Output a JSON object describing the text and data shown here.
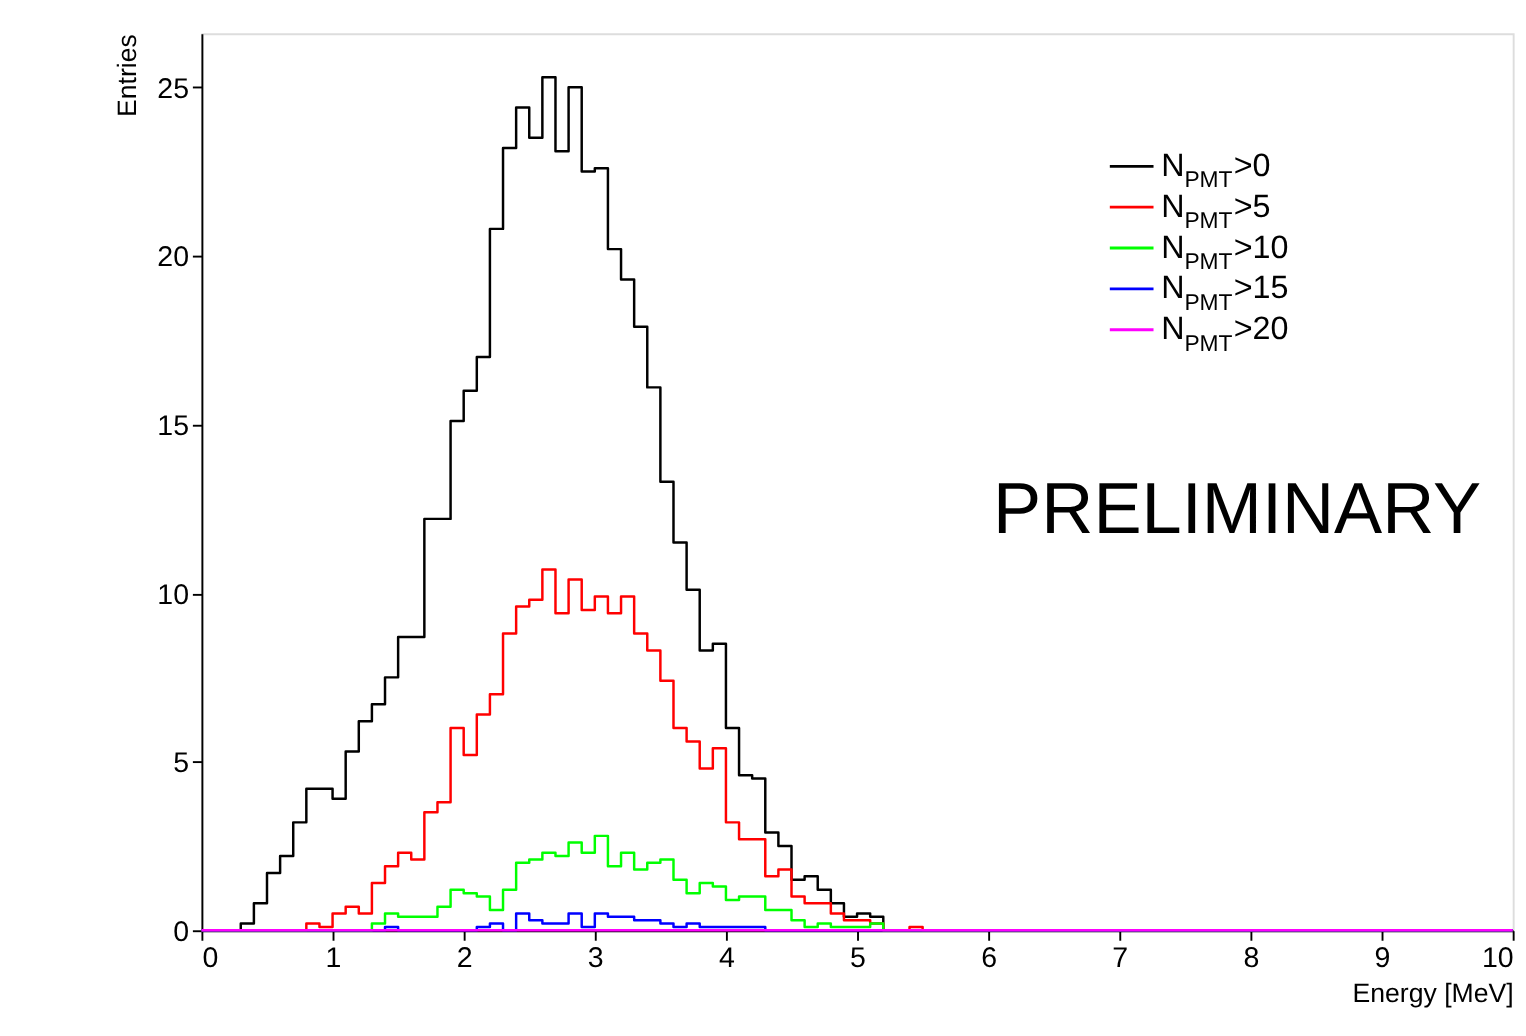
{
  "chart_data": {
    "type": "histogram",
    "xlabel": "Energy [MeV]",
    "ylabel": "Entries",
    "bins": [
      0,
      0.1,
      0.2,
      0.3,
      0.4,
      0.5,
      0.6,
      0.7,
      0.8,
      0.9,
      1,
      1.1,
      1.2,
      1.3,
      1.4,
      1.5,
      1.6,
      1.7,
      1.8,
      1.9,
      2,
      2.1,
      2.2,
      2.3,
      2.4,
      2.5,
      2.6,
      2.7,
      2.8,
      2.9,
      3,
      3.1,
      3.2,
      3.3,
      3.4,
      3.5,
      3.6,
      3.7,
      3.8,
      3.9,
      4,
      4.1,
      4.2,
      4.3,
      4.4,
      4.5,
      4.6,
      4.7,
      4.8,
      4.9,
      5,
      5.1,
      5.2,
      5.3,
      5.4,
      5.5,
      5.6,
      5.7,
      5.8,
      5.9,
      6,
      6.1,
      6.2,
      6.3,
      6.4,
      6.5,
      6.6,
      6.7,
      6.8,
      6.9,
      7,
      7.1,
      7.2,
      7.3,
      7.4,
      7.5,
      7.6,
      7.7,
      7.8,
      7.9,
      8,
      8.1,
      8.2,
      8.3,
      8.4,
      8.5,
      8.6,
      8.7,
      8.8,
      8.9,
      9,
      9.1,
      9.2,
      9.3,
      9.4,
      9.5,
      9.6,
      9.7,
      9.8,
      9.9,
      10
    ],
    "series": [
      {
        "name": "N$_{PMT}$>0",
        "color": "#000000",
        "values": [
          0,
          0,
          0,
          0.2,
          0.8,
          1.7,
          2.2,
          3.2,
          4.2,
          4.2,
          3.9,
          5.3,
          6.2,
          6.7,
          7.5,
          8.7,
          8.7,
          12.2,
          12.2,
          15.1,
          16.0,
          17.0,
          20.8,
          23.2,
          24.4,
          23.5,
          25.3,
          23.1,
          25.0,
          22.5,
          22.6,
          20.2,
          19.3,
          17.9,
          16.1,
          13.3,
          11.5,
          10.1,
          8.3,
          8.5,
          6.0,
          4.6,
          4.5,
          2.9,
          2.5,
          1.5,
          1.6,
          1.2,
          0.8,
          0.4,
          0.5,
          0.4,
          0,
          0,
          0,
          0,
          0,
          0,
          0,
          0,
          0,
          0,
          0,
          0,
          0,
          0,
          0,
          0,
          0,
          0,
          0,
          0,
          0,
          0,
          0,
          0,
          0,
          0,
          0,
          0,
          0,
          0,
          0,
          0,
          0,
          0,
          0,
          0,
          0,
          0,
          0,
          0,
          0,
          0,
          0,
          0,
          0,
          0,
          0,
          0
        ]
      },
      {
        "name": "N$_{PMT}$>5",
        "color": "#ff0000",
        "values": [
          0,
          0,
          0,
          0,
          0,
          0,
          0,
          0,
          0.2,
          0.1,
          0.5,
          0.7,
          0.5,
          1.4,
          1.9,
          2.3,
          2.1,
          3.5,
          3.8,
          6.0,
          5.2,
          6.4,
          7.0,
          8.8,
          9.6,
          9.8,
          10.7,
          9.4,
          10.4,
          9.5,
          9.9,
          9.4,
          9.9,
          8.8,
          8.3,
          7.4,
          6.0,
          5.6,
          4.8,
          5.4,
          3.2,
          2.7,
          2.7,
          1.6,
          1.8,
          1.0,
          0.8,
          0.8,
          0.5,
          0.3,
          0.3,
          0.2,
          0,
          0,
          0.1,
          0,
          0,
          0,
          0,
          0,
          0,
          0,
          0,
          0,
          0,
          0,
          0,
          0,
          0,
          0,
          0,
          0,
          0,
          0,
          0,
          0,
          0,
          0,
          0,
          0,
          0,
          0,
          0,
          0,
          0,
          0,
          0,
          0,
          0,
          0,
          0,
          0,
          0,
          0,
          0,
          0,
          0,
          0,
          0,
          0
        ]
      },
      {
        "name": "N$_{PMT}$>10",
        "color": "#00ff00",
        "values": [
          0,
          0,
          0,
          0,
          0,
          0,
          0,
          0,
          0,
          0,
          0,
          0,
          0,
          0.2,
          0.5,
          0.4,
          0.4,
          0.4,
          0.7,
          1.2,
          1.1,
          1.0,
          0.6,
          1.2,
          2.0,
          2.1,
          2.3,
          2.2,
          2.6,
          2.3,
          2.8,
          1.9,
          2.3,
          1.8,
          2.0,
          2.1,
          1.5,
          1.1,
          1.4,
          1.3,
          0.9,
          1.0,
          1.0,
          0.6,
          0.6,
          0.3,
          0.1,
          0.2,
          0.1,
          0.1,
          0.1,
          0.2,
          0,
          0,
          0,
          0,
          0,
          0,
          0,
          0,
          0,
          0,
          0,
          0,
          0,
          0,
          0,
          0,
          0,
          0,
          0,
          0,
          0,
          0,
          0,
          0,
          0,
          0,
          0,
          0,
          0,
          0,
          0,
          0,
          0,
          0,
          0,
          0,
          0,
          0,
          0,
          0,
          0,
          0,
          0,
          0,
          0,
          0,
          0,
          0
        ]
      },
      {
        "name": "N$_{PMT}$>15",
        "color": "#0000ff",
        "values": [
          0,
          0,
          0,
          0,
          0,
          0,
          0,
          0,
          0,
          0,
          0,
          0,
          0,
          0,
          0.1,
          0,
          0,
          0,
          0,
          0,
          0,
          0.1,
          0.2,
          0,
          0.5,
          0.3,
          0.2,
          0.2,
          0.5,
          0.1,
          0.5,
          0.4,
          0.4,
          0.3,
          0.3,
          0.2,
          0.1,
          0.2,
          0.1,
          0.1,
          0.1,
          0.1,
          0.1,
          0,
          0,
          0,
          0,
          0,
          0,
          0,
          0,
          0,
          0,
          0,
          0,
          0,
          0,
          0,
          0,
          0,
          0,
          0,
          0,
          0,
          0,
          0,
          0,
          0,
          0,
          0,
          0,
          0,
          0,
          0,
          0,
          0,
          0,
          0,
          0,
          0,
          0,
          0,
          0,
          0,
          0,
          0,
          0,
          0,
          0,
          0,
          0,
          0,
          0,
          0,
          0,
          0,
          0,
          0,
          0,
          0
        ]
      },
      {
        "name": "N$_{PMT}$>20",
        "color": "#ff00ff",
        "values": [
          0,
          0,
          0,
          0,
          0,
          0,
          0,
          0,
          0,
          0,
          0,
          0,
          0,
          0,
          0,
          0,
          0,
          0,
          0,
          0,
          0,
          0,
          0,
          0,
          0,
          0,
          0,
          0,
          0,
          0,
          0,
          0,
          0,
          0,
          0,
          0,
          0,
          0,
          0,
          0,
          0,
          0,
          0,
          0,
          0,
          0,
          0,
          0,
          0,
          0,
          0,
          0,
          0,
          0,
          0,
          0,
          0,
          0,
          0,
          0,
          0,
          0,
          0,
          0,
          0,
          0,
          0,
          0,
          0,
          0,
          0,
          0,
          0,
          0,
          0,
          0,
          0,
          0,
          0,
          0,
          0,
          0,
          0,
          0,
          0,
          0,
          0,
          0,
          0,
          0,
          0,
          0,
          0,
          0,
          0,
          0,
          0,
          0,
          0,
          0
        ]
      }
    ],
    "xlim": [
      0,
      10
    ],
    "xticks": [
      0,
      1,
      2,
      3,
      4,
      5,
      6,
      7,
      8,
      9,
      10
    ],
    "ylim": [
      0,
      26.6
    ],
    "yticks": [
      0,
      5,
      10,
      15,
      20,
      25
    ],
    "grid": false,
    "legend": "top right",
    "annotations": [
      "PRELIMINARY"
    ]
  }
}
